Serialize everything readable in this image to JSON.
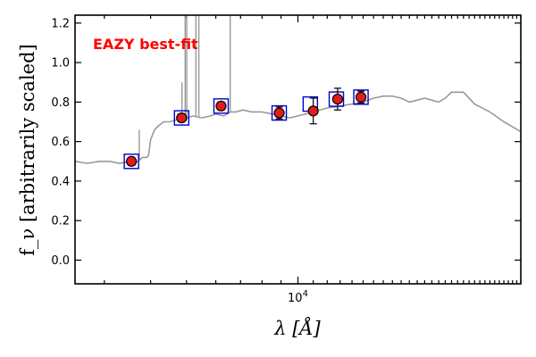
{
  "chart_data": {
    "type": "scatter",
    "title": "",
    "xlabel": "λ [Å]",
    "ylabel": "f_ν [arbitrarily scaled]",
    "xscale": "log",
    "xlim": [
      2500,
      40000
    ],
    "ylim": [
      -0.12,
      1.24
    ],
    "grid": false,
    "yticks": [
      0.0,
      0.2,
      0.4,
      0.6,
      0.8,
      1.0,
      1.2
    ],
    "ytick_labels": [
      "0.0",
      "0.2",
      "0.4",
      "0.6",
      "0.8",
      "1.0",
      "1.2"
    ],
    "xticks_major": [
      10000
    ],
    "xtick_major_labels": [
      "10"
    ],
    "xtick_exponent": "4",
    "annotation": {
      "text": "EAZY best-fit",
      "color": "#ff0000"
    },
    "colors": {
      "template": "#999999",
      "photometry_fill": "#e31a1c",
      "model_box": "#0000cc"
    },
    "template_spectrum": {
      "name": "",
      "x": [
        2500,
        2700,
        2900,
        3100,
        3300,
        3500,
        3600,
        3650,
        3700,
        3800,
        3900,
        3950,
        4000,
        4100,
        4200,
        4340,
        4500,
        4700,
        4861,
        5000,
        5007,
        5200,
        5500,
        5800,
        6000,
        6300,
        6563,
        6800,
        7100,
        7500,
        8000,
        8500,
        9000,
        9500,
        10000,
        10500,
        11000,
        12000,
        13000,
        14000,
        15000,
        16000,
        17000,
        18000,
        19000,
        20000,
        21000,
        22000,
        23000,
        24000,
        25000,
        26000,
        28000,
        30000,
        33000,
        36000,
        40000
      ],
      "y": [
        0.5,
        0.49,
        0.5,
        0.5,
        0.49,
        0.5,
        0.51,
        0.5,
        0.5,
        0.52,
        0.52,
        0.53,
        0.61,
        0.66,
        0.68,
        0.7,
        0.7,
        0.71,
        0.72,
        0.71,
        0.72,
        0.73,
        0.72,
        0.73,
        0.74,
        0.73,
        0.75,
        0.75,
        0.76,
        0.75,
        0.75,
        0.74,
        0.73,
        0.72,
        0.73,
        0.74,
        0.75,
        0.77,
        0.78,
        0.79,
        0.8,
        0.82,
        0.83,
        0.83,
        0.82,
        0.8,
        0.81,
        0.82,
        0.81,
        0.8,
        0.82,
        0.85,
        0.85,
        0.79,
        0.75,
        0.7,
        0.65
      ]
    },
    "emission_lines": [
      {
        "x": 3727,
        "peak": 0.66
      },
      {
        "x": 4861,
        "peak": 0.9
      },
      {
        "x": 4959,
        "peak": 1.24
      },
      {
        "x": 5007,
        "peak": 1.24
      },
      {
        "x": 5300,
        "peak": 1.24
      },
      {
        "x": 5400,
        "peak": 1.24
      },
      {
        "x": 6563,
        "peak": 1.24
      }
    ],
    "series": [
      {
        "name": "",
        "kind": "photometry",
        "x": [
          3550,
          4850,
          6200,
          8900,
          11000,
          12800,
          14800
        ],
        "y": [
          0.5,
          0.72,
          0.78,
          0.745,
          0.755,
          0.815,
          0.825
        ],
        "yerr": [
          0.02,
          0.02,
          0.02,
          0.03,
          0.065,
          0.055,
          0.03
        ]
      },
      {
        "name": "",
        "kind": "model",
        "x": [
          3550,
          4850,
          6200,
          8900,
          10800,
          12700,
          14800
        ],
        "y": [
          0.5,
          0.72,
          0.78,
          0.745,
          0.79,
          0.815,
          0.825
        ]
      }
    ]
  }
}
